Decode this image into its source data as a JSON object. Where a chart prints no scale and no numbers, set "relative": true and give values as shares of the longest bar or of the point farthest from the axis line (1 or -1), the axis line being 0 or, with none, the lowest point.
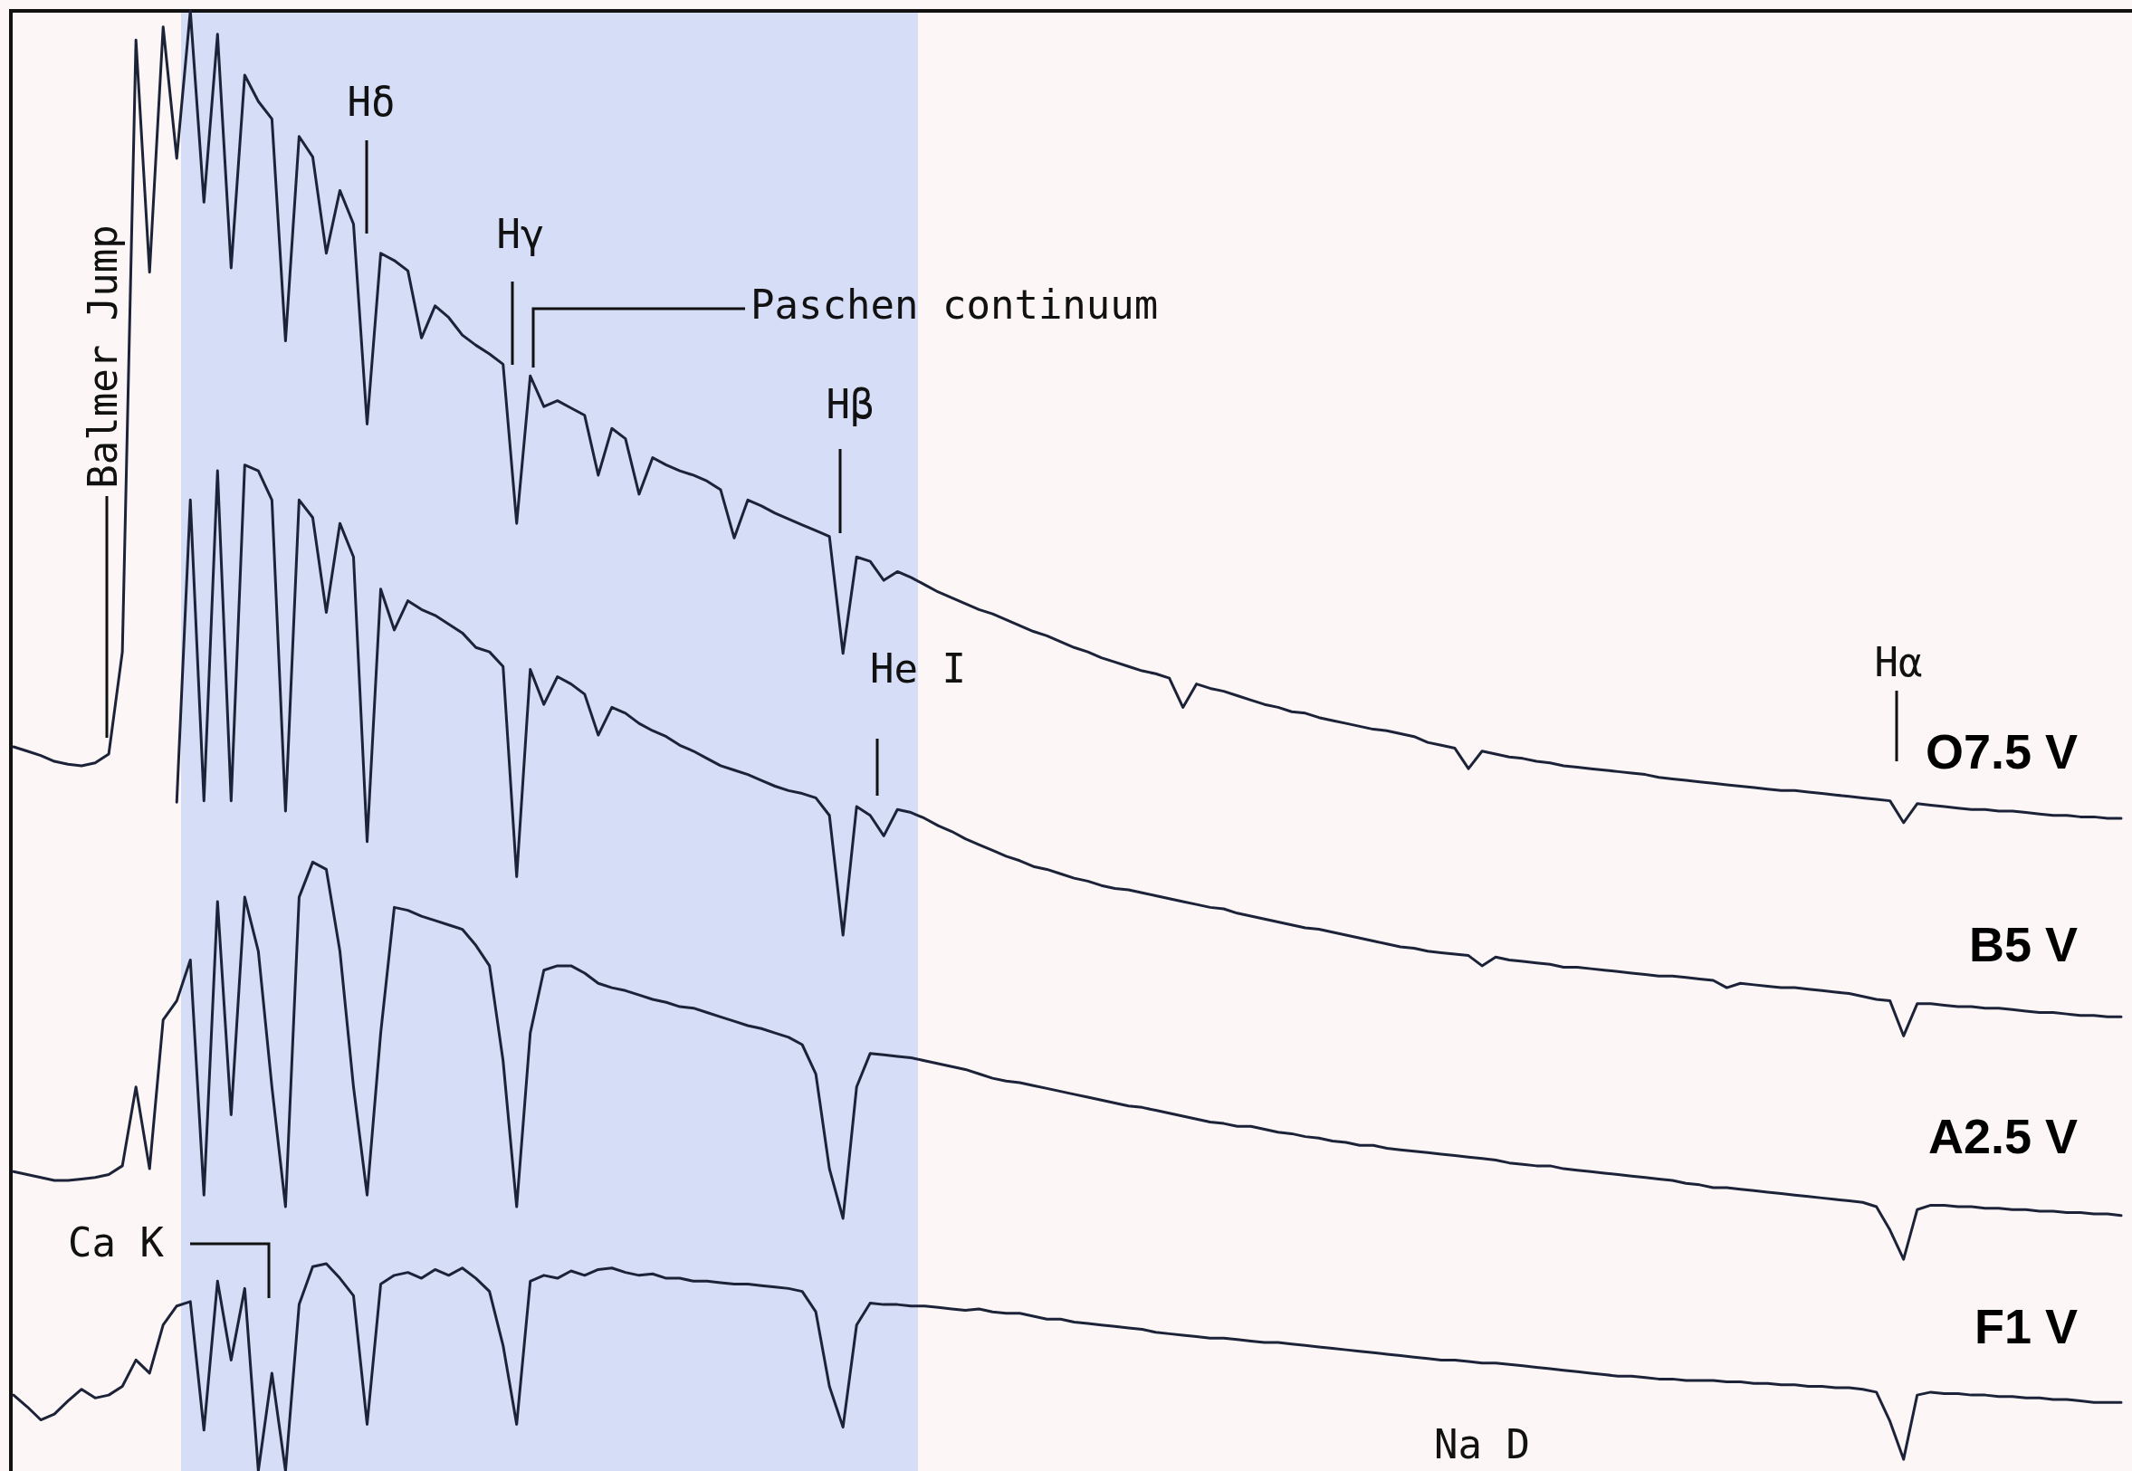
{
  "chart_data": {
    "type": "line",
    "relative": true,
    "categories": [
      null,
      null,
      null,
      null,
      null,
      null,
      null,
      null,
      null,
      null,
      null,
      null,
      null,
      null,
      null,
      null,
      null,
      null,
      null,
      null,
      null,
      null,
      null,
      null,
      null,
      null,
      null,
      null,
      null,
      null,
      null,
      null,
      null,
      null,
      null,
      null,
      null,
      null,
      null,
      null,
      null,
      null,
      null,
      null,
      null,
      null,
      null,
      null,
      null,
      null,
      null,
      null,
      null,
      null,
      null,
      null,
      null,
      null,
      null,
      null,
      null,
      null,
      null,
      null,
      null,
      null,
      null,
      null,
      null,
      null,
      null,
      null,
      null,
      null,
      null,
      null,
      null,
      null,
      null,
      null,
      null,
      null,
      null,
      null,
      null,
      null,
      null,
      null,
      null,
      null,
      null,
      null,
      null,
      null,
      null,
      null,
      null,
      null,
      null,
      null,
      null,
      null,
      null,
      null,
      null,
      null,
      null,
      null,
      null,
      null,
      null,
      null,
      null,
      null,
      null,
      null,
      null,
      null,
      null,
      null,
      null,
      null,
      null,
      null,
      null,
      null,
      null,
      null,
      null,
      null,
      null,
      null,
      null,
      null,
      null,
      null,
      null,
      null,
      null,
      null,
      null,
      null,
      null,
      null,
      null,
      null,
      null,
      null,
      null,
      null,
      null,
      null,
      null,
      null,
      null,
      null
    ],
    "series": [
      {
        "name": "O7.5 V",
        "color": "#1c2338",
        "values": [
          0.496,
          0.493,
          0.49,
          0.486,
          0.484,
          0.483,
          0.485,
          0.491,
          0.561,
          0.98,
          0.821,
          0.989,
          0.899,
          1,
          0.869,
          0.984,
          0.824,
          0.956,
          0.938,
          0.926,
          0.774,
          0.914,
          0.9,
          0.834,
          0.877,
          0.854,
          0.717,
          0.834,
          0.829,
          0.822,
          0.776,
          0.798,
          0.79,
          0.778,
          0.771,
          0.765,
          0.758,
          0.649,
          0.75,
          0.729,
          0.733,
          0.728,
          0.723,
          0.682,
          0.714,
          0.707,
          0.669,
          0.694,
          0.689,
          0.685,
          0.682,
          0.678,
          0.672,
          0.639,
          0.665,
          0.661,
          0.656,
          0.652,
          0.648,
          0.644,
          0.64,
          0.56,
          0.626,
          0.623,
          0.61,
          0.616,
          0.612,
          0.607,
          0.602,
          0.598,
          0.594,
          0.59,
          0.587,
          0.583,
          0.579,
          0.575,
          0.572,
          0.568,
          0.564,
          0.561,
          0.557,
          0.554,
          0.551,
          0.548,
          0.546,
          0.543,
          0.523,
          0.539,
          0.536,
          0.534,
          0.531,
          0.528,
          0.525,
          0.523,
          0.52,
          0.519,
          0.516,
          0.514,
          0.512,
          0.51,
          0.508,
          0.507,
          0.505,
          0.503,
          0.499,
          0.497,
          0.495,
          0.481,
          0.493,
          0.491,
          0.489,
          0.488,
          0.486,
          0.485,
          0.483,
          0.482,
          0.481,
          0.48,
          0.479,
          0.478,
          0.477,
          0.475,
          0.474,
          0.473,
          0.472,
          0.471,
          0.47,
          0.469,
          0.468,
          0.467,
          0.466,
          0.466,
          0.465,
          0.464,
          0.463,
          0.462,
          0.461,
          0.46,
          0.459,
          0.444,
          0.457,
          0.456,
          0.455,
          0.454,
          0.453,
          0.453,
          0.452,
          0.452,
          0.451,
          0.45,
          0.449,
          0.449,
          0.448,
          0.448,
          0.447,
          0.447
        ]
      },
      {
        "name": "B5 V",
        "color": "#1c2338",
        "values": [
          null,
          null,
          null,
          null,
          null,
          null,
          null,
          null,
          null,
          null,
          null,
          null,
          0.458,
          0.665,
          0.459,
          0.685,
          0.459,
          0.689,
          0.685,
          0.665,
          0.452,
          0.665,
          0.653,
          0.588,
          0.649,
          0.626,
          0.431,
          0.604,
          0.576,
          0.596,
          0.59,
          0.586,
          0.58,
          0.574,
          0.564,
          0.561,
          0.551,
          0.407,
          0.549,
          0.525,
          0.544,
          0.539,
          0.532,
          0.504,
          0.523,
          0.519,
          0.512,
          0.507,
          0.503,
          0.497,
          0.493,
          0.488,
          0.483,
          0.48,
          0.477,
          0.473,
          0.469,
          0.466,
          0.464,
          0.461,
          0.449,
          0.367,
          0.455,
          0.449,
          0.435,
          0.453,
          0.451,
          0.447,
          0.442,
          0.438,
          0.433,
          0.429,
          0.425,
          0.421,
          0.418,
          0.414,
          0.412,
          0.409,
          0.406,
          0.404,
          0.401,
          0.399,
          0.398,
          0.396,
          0.394,
          0.392,
          0.39,
          0.388,
          0.386,
          0.385,
          0.382,
          0.38,
          0.378,
          0.376,
          0.374,
          0.372,
          0.371,
          0.369,
          0.367,
          0.365,
          0.363,
          0.361,
          0.359,
          0.358,
          0.356,
          0.355,
          0.354,
          0.353,
          0.346,
          0.352,
          0.35,
          0.349,
          0.348,
          0.347,
          0.345,
          0.345,
          0.344,
          0.343,
          0.342,
          0.341,
          0.34,
          0.339,
          0.339,
          0.338,
          0.337,
          0.336,
          0.331,
          0.334,
          0.333,
          0.332,
          0.331,
          0.331,
          0.33,
          0.329,
          0.328,
          0.327,
          0.325,
          0.323,
          0.322,
          0.298,
          0.32,
          0.32,
          0.319,
          0.318,
          0.318,
          0.317,
          0.317,
          0.316,
          0.315,
          0.314,
          0.314,
          0.313,
          0.312,
          0.312,
          0.311,
          0.311
        ]
      },
      {
        "name": "A2.5 V",
        "color": "#1c2338",
        "values": [
          0.205,
          0.203,
          0.201,
          0.199,
          0.199,
          0.2,
          0.201,
          0.203,
          0.209,
          0.263,
          0.207,
          0.309,
          0.322,
          0.35,
          0.189,
          0.39,
          0.244,
          0.393,
          0.356,
          0.263,
          0.181,
          0.393,
          0.417,
          0.412,
          0.356,
          0.263,
          0.189,
          0.3,
          0.386,
          0.384,
          0.38,
          0.377,
          0.374,
          0.371,
          0.36,
          0.346,
          0.281,
          0.181,
          0.3,
          0.343,
          0.346,
          0.346,
          0.341,
          0.334,
          0.331,
          0.329,
          0.326,
          0.323,
          0.321,
          0.318,
          0.317,
          0.314,
          0.311,
          0.308,
          0.305,
          0.303,
          0.3,
          0.297,
          0.292,
          0.272,
          0.207,
          0.173,
          0.263,
          0.286,
          0.285,
          0.284,
          0.283,
          0.281,
          0.279,
          0.277,
          0.275,
          0.272,
          0.269,
          0.267,
          0.266,
          0.264,
          0.262,
          0.26,
          0.258,
          0.256,
          0.254,
          0.252,
          0.25,
          0.249,
          0.247,
          0.245,
          0.243,
          0.241,
          0.239,
          0.238,
          0.236,
          0.236,
          0.234,
          0.232,
          0.231,
          0.229,
          0.228,
          0.226,
          0.225,
          0.223,
          0.223,
          0.221,
          0.22,
          0.219,
          0.218,
          0.217,
          0.216,
          0.215,
          0.214,
          0.213,
          0.211,
          0.21,
          0.209,
          0.209,
          0.207,
          0.206,
          0.205,
          0.204,
          0.203,
          0.202,
          0.201,
          0.2,
          0.199,
          0.197,
          0.196,
          0.194,
          0.194,
          0.193,
          0.192,
          0.191,
          0.19,
          0.189,
          0.188,
          0.187,
          0.186,
          0.185,
          0.184,
          0.181,
          0.165,
          0.145,
          0.179,
          0.182,
          0.182,
          0.181,
          0.181,
          0.18,
          0.18,
          0.179,
          0.179,
          0.178,
          0.178,
          0.177,
          0.177,
          0.176,
          0.176,
          0.175
        ]
      },
      {
        "name": "F1 V",
        "color": "#1c2338",
        "values": [
          0.052,
          0.044,
          0.035,
          0.039,
          0.048,
          0.056,
          0.05,
          0.052,
          0.058,
          0.076,
          0.067,
          0.1,
          0.113,
          0.116,
          0.028,
          0.13,
          0.076,
          0.125,
          0,
          0.067,
          0,
          0.114,
          0.14,
          0.142,
          0.132,
          0.12,
          0.032,
          0.128,
          0.134,
          0.136,
          0.132,
          0.138,
          0.134,
          0.139,
          0.132,
          0.123,
          0.086,
          0.032,
          0.13,
          0.134,
          0.132,
          0.137,
          0.134,
          0.138,
          0.139,
          0.136,
          0.134,
          0.135,
          0.132,
          0.132,
          0.13,
          0.13,
          0.129,
          0.128,
          0.128,
          0.127,
          0.126,
          0.125,
          0.123,
          0.109,
          0.058,
          0.03,
          0.1,
          0.115,
          0.114,
          0.114,
          0.113,
          0.113,
          0.112,
          0.111,
          0.11,
          0.111,
          0.109,
          0.108,
          0.108,
          0.106,
          0.104,
          0.104,
          0.102,
          0.101,
          0.1,
          0.099,
          0.098,
          0.097,
          0.095,
          0.094,
          0.093,
          0.092,
          0.091,
          0.091,
          0.09,
          0.089,
          0.088,
          0.088,
          0.087,
          0.086,
          0.085,
          0.084,
          0.083,
          0.082,
          0.081,
          0.08,
          0.079,
          0.078,
          0.077,
          0.076,
          0.076,
          0.075,
          0.074,
          0.074,
          0.073,
          0.072,
          0.071,
          0.07,
          0.069,
          0.068,
          0.067,
          0.066,
          0.065,
          0.065,
          0.064,
          0.063,
          0.063,
          0.062,
          0.062,
          0.062,
          0.061,
          0.061,
          0.06,
          0.06,
          0.059,
          0.059,
          0.058,
          0.058,
          0.057,
          0.057,
          0.056,
          0.054,
          0.034,
          0.008,
          0.052,
          0.054,
          0.053,
          0.053,
          0.052,
          0.052,
          0.051,
          0.051,
          0.05,
          0.05,
          0.049,
          0.049,
          0.048,
          0.047,
          0.047,
          0.047
        ]
      }
    ],
    "annotations": [
      "Balmer Jump",
      "Hδ",
      "Hγ",
      "Paschen continuum",
      "Hβ",
      "He I",
      "Hα",
      "Ca K",
      "Na D"
    ]
  }
}
